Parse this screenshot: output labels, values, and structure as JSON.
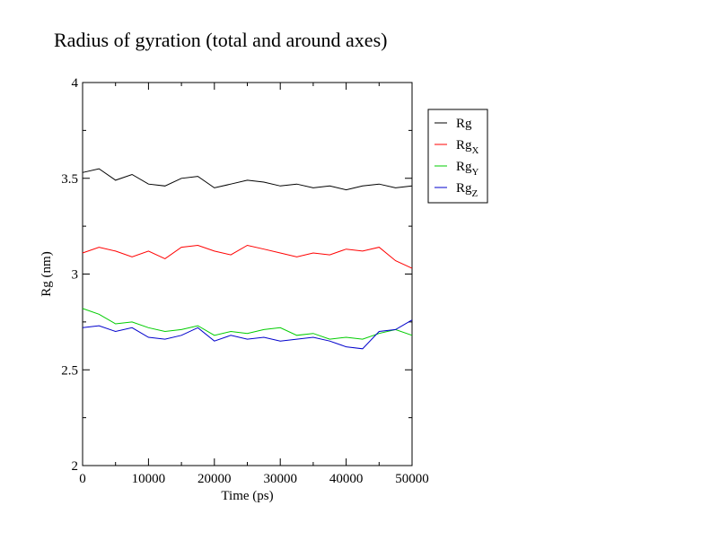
{
  "chart_data": {
    "type": "line",
    "title": "Radius of gyration (total and around axes)",
    "xlabel": "Time (ps)",
    "ylabel": "Rg (nm)",
    "xlim": [
      0,
      50000
    ],
    "ylim": [
      2,
      4
    ],
    "xticks": [
      0,
      10000,
      20000,
      30000,
      40000,
      50000
    ],
    "xtick_labels": [
      "0",
      "10000",
      "20000",
      "30000",
      "40000",
      "50000"
    ],
    "yticks": [
      2,
      2.5,
      3,
      3.5,
      4
    ],
    "ytick_labels": [
      "2",
      "2.5",
      "3",
      "3.5",
      "4"
    ],
    "grid": false,
    "legend_position": "right",
    "x": [
      0,
      2500,
      5000,
      7500,
      10000,
      12500,
      15000,
      17500,
      20000,
      22500,
      25000,
      27500,
      30000,
      32500,
      35000,
      37500,
      40000,
      42500,
      45000,
      47500,
      50000
    ],
    "series": [
      {
        "name": "Rg",
        "subscript": "",
        "color": "#000000",
        "values": [
          3.53,
          3.55,
          3.49,
          3.52,
          3.47,
          3.46,
          3.5,
          3.51,
          3.45,
          3.47,
          3.49,
          3.48,
          3.46,
          3.47,
          3.45,
          3.46,
          3.44,
          3.46,
          3.47,
          3.45,
          3.46
        ]
      },
      {
        "name": "Rg",
        "subscript": "X",
        "color": "#ff0000",
        "values": [
          3.11,
          3.14,
          3.12,
          3.09,
          3.12,
          3.08,
          3.14,
          3.15,
          3.12,
          3.1,
          3.15,
          3.13,
          3.11,
          3.09,
          3.11,
          3.1,
          3.13,
          3.12,
          3.14,
          3.07,
          3.03
        ]
      },
      {
        "name": "Rg",
        "subscript": "Y",
        "color": "#00cc00",
        "values": [
          2.82,
          2.79,
          2.74,
          2.75,
          2.72,
          2.7,
          2.71,
          2.73,
          2.68,
          2.7,
          2.69,
          2.71,
          2.72,
          2.68,
          2.69,
          2.66,
          2.67,
          2.66,
          2.69,
          2.71,
          2.68
        ]
      },
      {
        "name": "Rg",
        "subscript": "Z",
        "color": "#0000cc",
        "values": [
          2.72,
          2.73,
          2.7,
          2.72,
          2.67,
          2.66,
          2.68,
          2.72,
          2.65,
          2.68,
          2.66,
          2.67,
          2.65,
          2.66,
          2.67,
          2.65,
          2.62,
          2.61,
          2.7,
          2.71,
          2.76
        ]
      }
    ]
  }
}
